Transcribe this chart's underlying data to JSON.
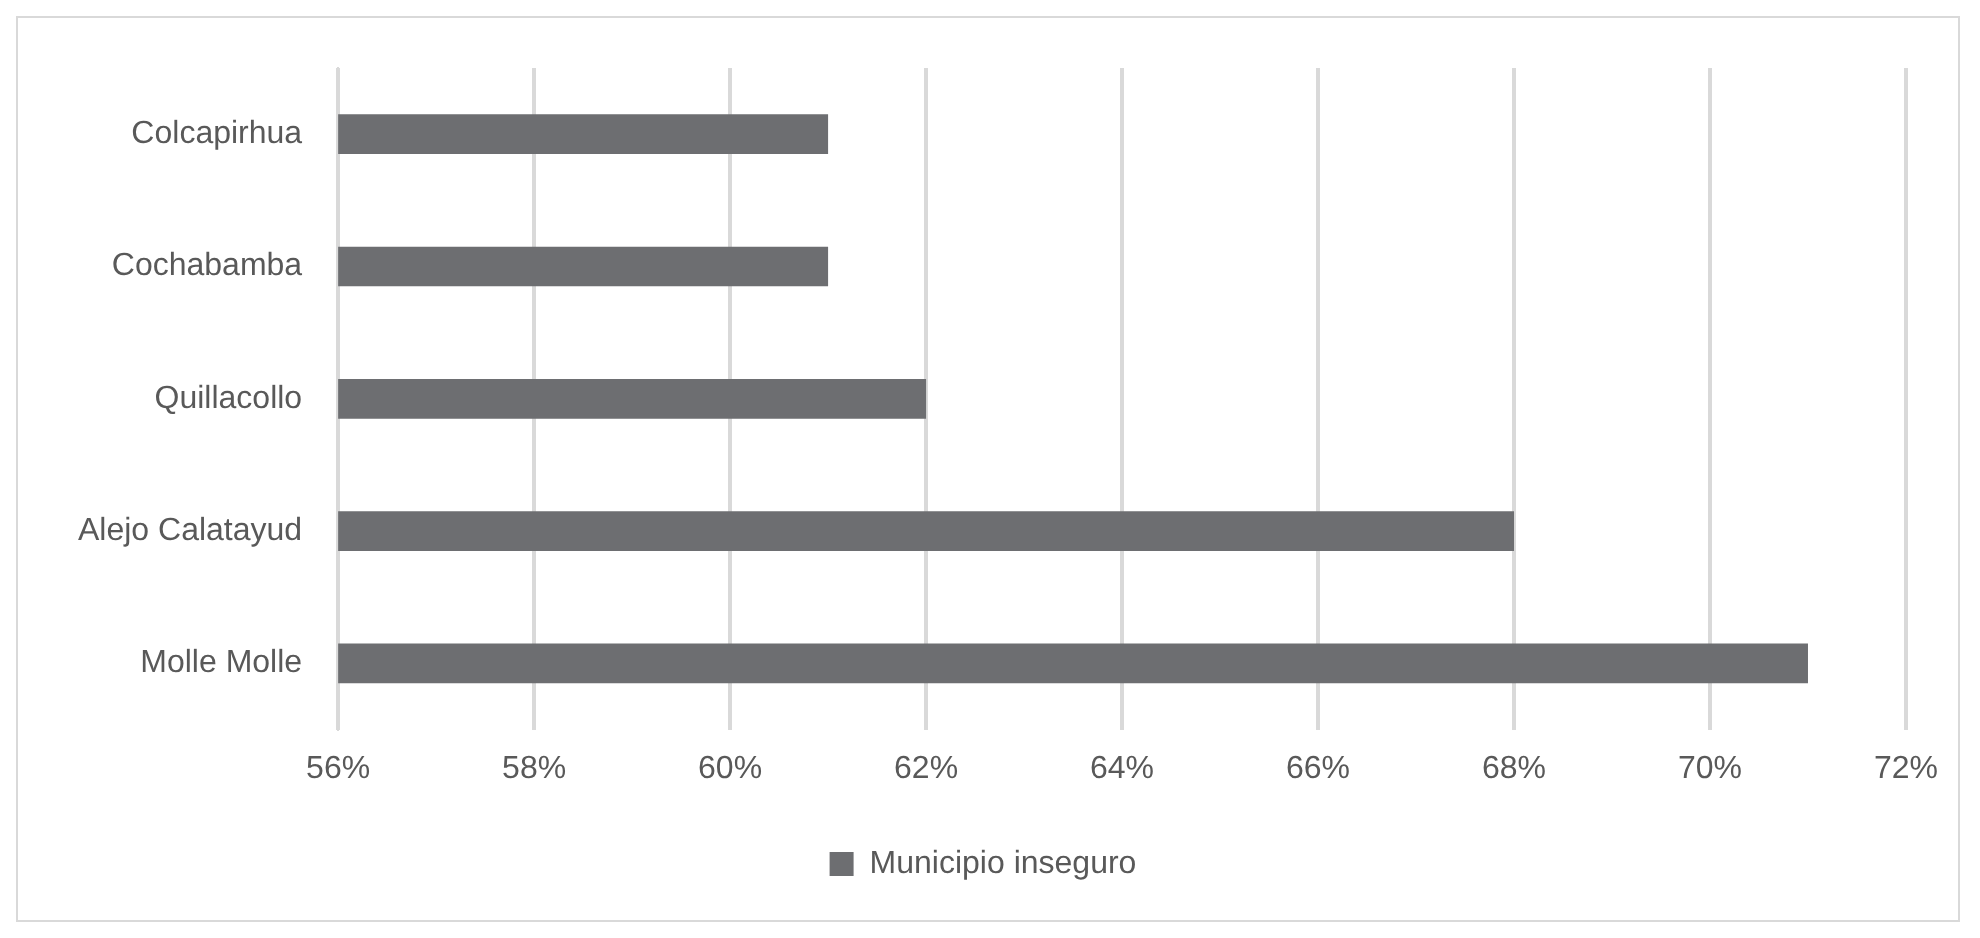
{
  "chart_data": {
    "type": "bar",
    "orientation": "horizontal",
    "categories": [
      "Colcapirhua",
      "Cochabamba",
      "Quillacollo",
      "Alejo Calatayud",
      "Molle Molle"
    ],
    "series": [
      {
        "name": "Municipio inseguro",
        "color": "#6d6e71",
        "values": [
          61,
          61,
          62,
          68,
          71
        ]
      }
    ],
    "xlim": [
      56,
      72
    ],
    "xticks": [
      {
        "value": 56,
        "label": "56%"
      },
      {
        "value": 58,
        "label": "58%"
      },
      {
        "value": 60,
        "label": "60%"
      },
      {
        "value": 62,
        "label": "62%"
      },
      {
        "value": 64,
        "label": "64%"
      },
      {
        "value": 66,
        "label": "66%"
      },
      {
        "value": 68,
        "label": "68%"
      },
      {
        "value": 70,
        "label": "70%"
      },
      {
        "value": 72,
        "label": "72%"
      }
    ],
    "grid": "x",
    "legend": "bottom"
  }
}
